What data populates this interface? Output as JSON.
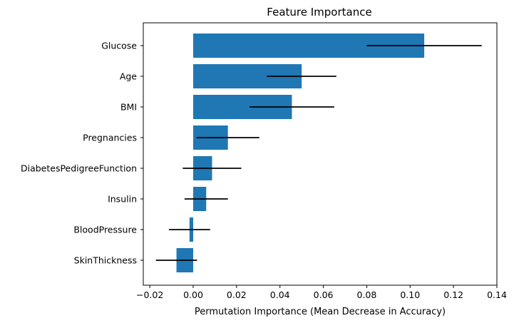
{
  "chart_data": {
    "type": "bar",
    "orientation": "horizontal",
    "title": "Feature Importance",
    "xlabel": "Permutation Importance (Mean Decrease in Accuracy)",
    "ylabel": "",
    "xlim": [
      -0.023,
      0.14
    ],
    "x_ticks": [
      -0.02,
      0.0,
      0.02,
      0.04,
      0.06,
      0.08,
      0.1,
      0.12,
      0.14
    ],
    "x_tick_labels": [
      "−0.02",
      "0.00",
      "0.02",
      "0.04",
      "0.06",
      "0.08",
      "0.10",
      "0.12",
      "0.14"
    ],
    "categories": [
      "Glucose",
      "Age",
      "BMI",
      "Pregnancies",
      "DiabetesPedigreeFunction",
      "Insulin",
      "BloodPressure",
      "SkinThickness"
    ],
    "values": [
      0.1065,
      0.05,
      0.0455,
      0.016,
      0.0087,
      0.006,
      -0.0017,
      -0.0077
    ],
    "errors": [
      0.0265,
      0.016,
      0.0195,
      0.0145,
      0.0135,
      0.01,
      0.0095,
      0.0095
    ],
    "bar_color": "#1f77b4",
    "error_color": "#000000",
    "grid": false,
    "legend": "none"
  }
}
